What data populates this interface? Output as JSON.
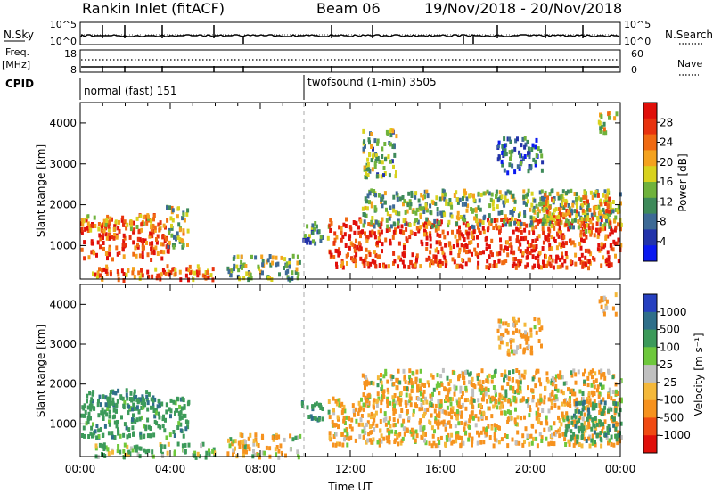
{
  "header": {
    "station": "Rankin Inlet (fitACF)",
    "beam": "Beam 06",
    "date_range": "19/Nov/2018 - 20/Nov/2018"
  },
  "left_labels": {
    "nsky": "N.Sky",
    "freq_line1": "Freq.",
    "freq_line2": "[MHz]",
    "cpid": "CPID"
  },
  "right_labels": {
    "nsearch": "N.Search",
    "nave": "Nave"
  },
  "cpid_modes": {
    "first": "normal (fast) 151",
    "second": "twofsound (1-min) 3505"
  },
  "noise_axis": {
    "top": "10^5",
    "bottom": "10^0"
  },
  "freq_axis": {
    "top": "18",
    "bottom": "8"
  },
  "nave_axis": {
    "top": "60",
    "bottom": "0"
  },
  "colorbars": {
    "power": {
      "label": "Power [dB]",
      "ticks": [
        "28",
        "24",
        "20",
        "16",
        "12",
        "8",
        "4"
      ]
    },
    "velocity": {
      "label": "Velocity [m s⁻¹]",
      "ticks": [
        "1000",
        "500",
        "100",
        "25",
        "-25",
        "-100",
        "-500",
        "-1000"
      ]
    }
  },
  "colors": {
    "power_scale": [
      "#0a19f0",
      "#2233aa",
      "#3d6a96",
      "#3e8a5a",
      "#6fb23c",
      "#d8d21e",
      "#f4a21e",
      "#f06a12",
      "#e8320e",
      "#e00f0a"
    ],
    "velocity_scale": [
      "#e00f0a",
      "#f04a12",
      "#f6921e",
      "#f4b83a",
      "#c0c0c0",
      "#6ec83c",
      "#3c9a5a",
      "#2f6f8a",
      "#2640c0"
    ]
  },
  "chart_data": [
    {
      "type": "heatmap",
      "panel": "power",
      "ylabel": "Slant Range [km]",
      "yticks": [
        1000,
        2000,
        3000,
        4000
      ],
      "ylim": [
        180,
        4500
      ],
      "xlim": [
        "00:00",
        "24:00"
      ],
      "xticks": [
        "00:00",
        "04:00",
        "08:00",
        "12:00",
        "16:00",
        "20:00",
        "00:00"
      ],
      "colorbar_range_db": [
        0,
        30
      ],
      "regions": [
        {
          "t": [
            0.0,
            3.9
          ],
          "r": [
            700,
            1700
          ],
          "value": 25
        },
        {
          "t": [
            0.0,
            3.5
          ],
          "r": [
            1400,
            1800
          ],
          "value": 19
        },
        {
          "t": [
            3.8,
            4.8
          ],
          "r": [
            900,
            2000
          ],
          "value": 15
        },
        {
          "t": [
            0.5,
            6.0
          ],
          "r": [
            200,
            550
          ],
          "value": 23
        },
        {
          "t": [
            6.5,
            9.8
          ],
          "r": [
            200,
            800
          ],
          "value": 13
        },
        {
          "t": [
            9.8,
            11.0
          ],
          "r": [
            1100,
            1600
          ],
          "value": 10
        },
        {
          "t": [
            11.0,
            24.0
          ],
          "r": [
            500,
            1700
          ],
          "value": 26
        },
        {
          "t": [
            12.5,
            24.0
          ],
          "r": [
            1500,
            2400
          ],
          "value": 13
        },
        {
          "t": [
            12.5,
            14.0
          ],
          "r": [
            2700,
            3900
          ],
          "value": 12
        },
        {
          "t": [
            18.5,
            20.5
          ],
          "r": [
            2800,
            3700
          ],
          "value": 7
        },
        {
          "t": [
            20.5,
            23.5
          ],
          "r": [
            1400,
            2300
          ],
          "value": 20
        },
        {
          "t": [
            23.0,
            23.8
          ],
          "r": [
            3800,
            4300
          ],
          "value": 16
        }
      ]
    },
    {
      "type": "heatmap",
      "panel": "velocity",
      "ylabel": "Slant Range [km]",
      "xlabel": "Time UT",
      "yticks": [
        1000,
        2000,
        3000,
        4000
      ],
      "ylim": [
        180,
        4500
      ],
      "xlim": [
        "00:00",
        "24:00"
      ],
      "xticks": [
        "00:00",
        "04:00",
        "08:00",
        "12:00",
        "16:00",
        "20:00",
        "00:00"
      ],
      "colorbar_range_ms": [
        -1000,
        1000
      ],
      "regions": [
        {
          "t": [
            0.0,
            4.8
          ],
          "r": [
            700,
            1700
          ],
          "value": 300
        },
        {
          "t": [
            0.0,
            3.5
          ],
          "r": [
            1400,
            1900
          ],
          "value": 400
        },
        {
          "t": [
            0.5,
            6.0
          ],
          "r": [
            200,
            550
          ],
          "value": 150
        },
        {
          "t": [
            6.5,
            9.8
          ],
          "r": [
            200,
            800
          ],
          "value": -80
        },
        {
          "t": [
            9.8,
            11.0
          ],
          "r": [
            1100,
            1600
          ],
          "value": 400
        },
        {
          "t": [
            11.0,
            24.0
          ],
          "r": [
            500,
            1700
          ],
          "value": -150
        },
        {
          "t": [
            12.5,
            24.0
          ],
          "r": [
            1500,
            2400
          ],
          "value": -100
        },
        {
          "t": [
            18.5,
            20.5
          ],
          "r": [
            2800,
            3700
          ],
          "value": -200
        },
        {
          "t": [
            21.5,
            24.0
          ],
          "r": [
            600,
            1600
          ],
          "value": 350
        },
        {
          "t": [
            23.0,
            23.8
          ],
          "r": [
            3800,
            4300
          ],
          "value": -150
        }
      ]
    }
  ]
}
